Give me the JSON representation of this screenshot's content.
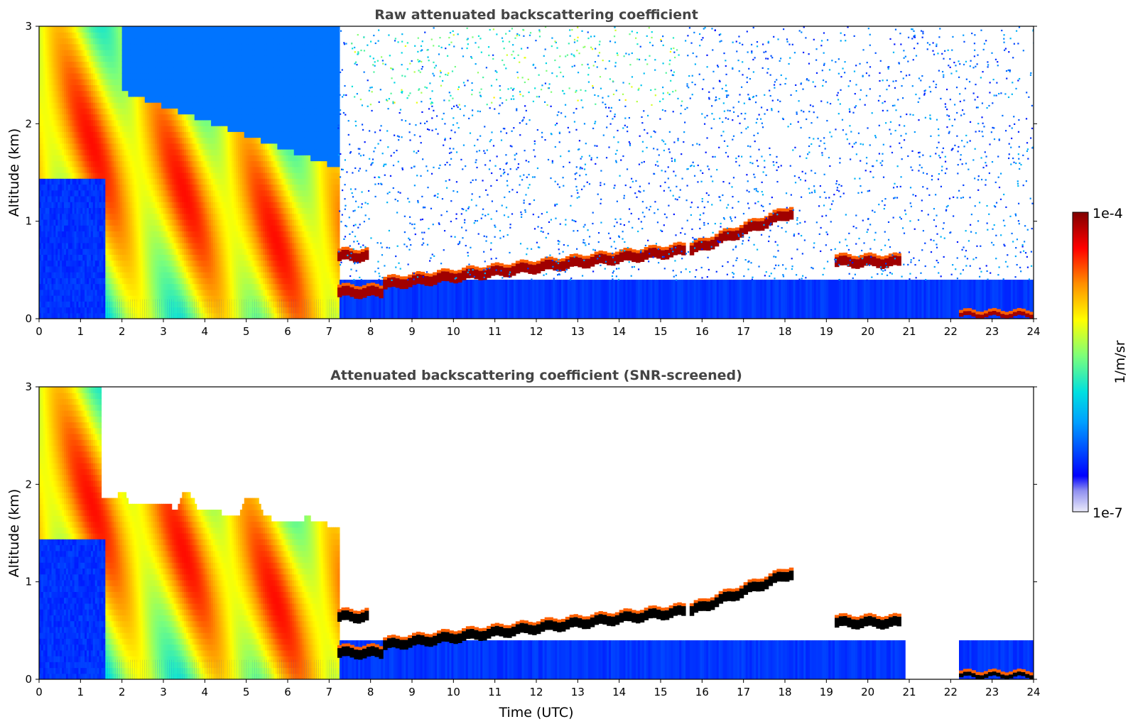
{
  "chart_data": [
    {
      "type": "heatmap",
      "title": "Raw attenuated backscattering coefficient",
      "xlabel": "",
      "ylabel": "Altitude (km)",
      "xlim": [
        0,
        24
      ],
      "ylim": [
        0,
        3
      ],
      "xticks": [
        "0",
        "1",
        "2",
        "3",
        "4",
        "5",
        "6",
        "7",
        "8",
        "9",
        "10",
        "11",
        "12",
        "13",
        "14",
        "15",
        "16",
        "17",
        "18",
        "19",
        "20",
        "21",
        "22",
        "23",
        "24"
      ],
      "yticks": [
        "0",
        "1",
        "2",
        "3"
      ],
      "screened": false,
      "features": [
        {
          "kind": "aerosol_plume",
          "t_start": 0.0,
          "t_end": 7.2,
          "z_top": 3.0,
          "peak_level": 0.75
        },
        {
          "kind": "boundary_layer",
          "t_start": 0.0,
          "t_end": 24.0,
          "z_top": 0.45,
          "level": 0.2
        },
        {
          "kind": "cloud_layer",
          "t_start": 7.2,
          "t_end": 7.95,
          "z": 0.64
        },
        {
          "kind": "cloud_layer",
          "t_start": 7.2,
          "t_end": 8.3,
          "z": 0.27
        },
        {
          "kind": "cloud_layer",
          "t_start": 8.3,
          "t_end": 15.6,
          "z_start": 0.35,
          "z_end": 0.7
        },
        {
          "kind": "cloud_layer",
          "t_start": 15.7,
          "t_end": 18.2,
          "z_start": 0.7,
          "z_end": 1.1
        },
        {
          "kind": "cloud_layer",
          "t_start": 19.2,
          "t_end": 20.8,
          "z": 0.58
        },
        {
          "kind": "surface_layer",
          "t_start": 22.2,
          "t_end": 24.0,
          "z": 0.04
        }
      ]
    },
    {
      "type": "heatmap",
      "title": "Attenuated backscattering coefficient (SNR-screened)",
      "xlabel": "Time (UTC)",
      "ylabel": "Altitude (km)",
      "xlim": [
        0,
        24
      ],
      "ylim": [
        0,
        3
      ],
      "xticks": [
        "0",
        "1",
        "2",
        "3",
        "4",
        "5",
        "6",
        "7",
        "8",
        "9",
        "10",
        "11",
        "12",
        "13",
        "14",
        "15",
        "16",
        "17",
        "18",
        "19",
        "20",
        "21",
        "22",
        "23",
        "24"
      ],
      "yticks": [
        "0",
        "1",
        "2",
        "3"
      ],
      "screened": true,
      "features": [
        {
          "kind": "aerosol_plume",
          "t_start": 0.0,
          "t_end": 7.2,
          "z_top": 3.0,
          "peak_level": 0.75
        },
        {
          "kind": "boundary_layer",
          "t_start": 0.0,
          "t_end": 24.0,
          "z_top": 0.45,
          "level": 0.2
        },
        {
          "kind": "cloud_layer",
          "t_start": 7.2,
          "t_end": 7.95,
          "z": 0.64
        },
        {
          "kind": "cloud_layer",
          "t_start": 7.2,
          "t_end": 8.3,
          "z": 0.27
        },
        {
          "kind": "cloud_layer",
          "t_start": 8.3,
          "t_end": 15.6,
          "z_start": 0.35,
          "z_end": 0.7
        },
        {
          "kind": "cloud_layer",
          "t_start": 15.7,
          "t_end": 18.2,
          "z_start": 0.7,
          "z_end": 1.1
        },
        {
          "kind": "cloud_layer",
          "t_start": 19.2,
          "t_end": 20.8,
          "z": 0.58
        },
        {
          "kind": "surface_layer",
          "t_start": 22.2,
          "t_end": 24.0,
          "z": 0.04
        }
      ]
    }
  ],
  "colorbar": {
    "label": "1/m/sr",
    "max_label": "1e-4",
    "min_label": "1e-7",
    "colormap": [
      "#e8e8fa",
      "#0000ff",
      "#00c8ff",
      "#7cff7a",
      "#ffff00",
      "#ff8000",
      "#ff0000",
      "#800000"
    ]
  }
}
